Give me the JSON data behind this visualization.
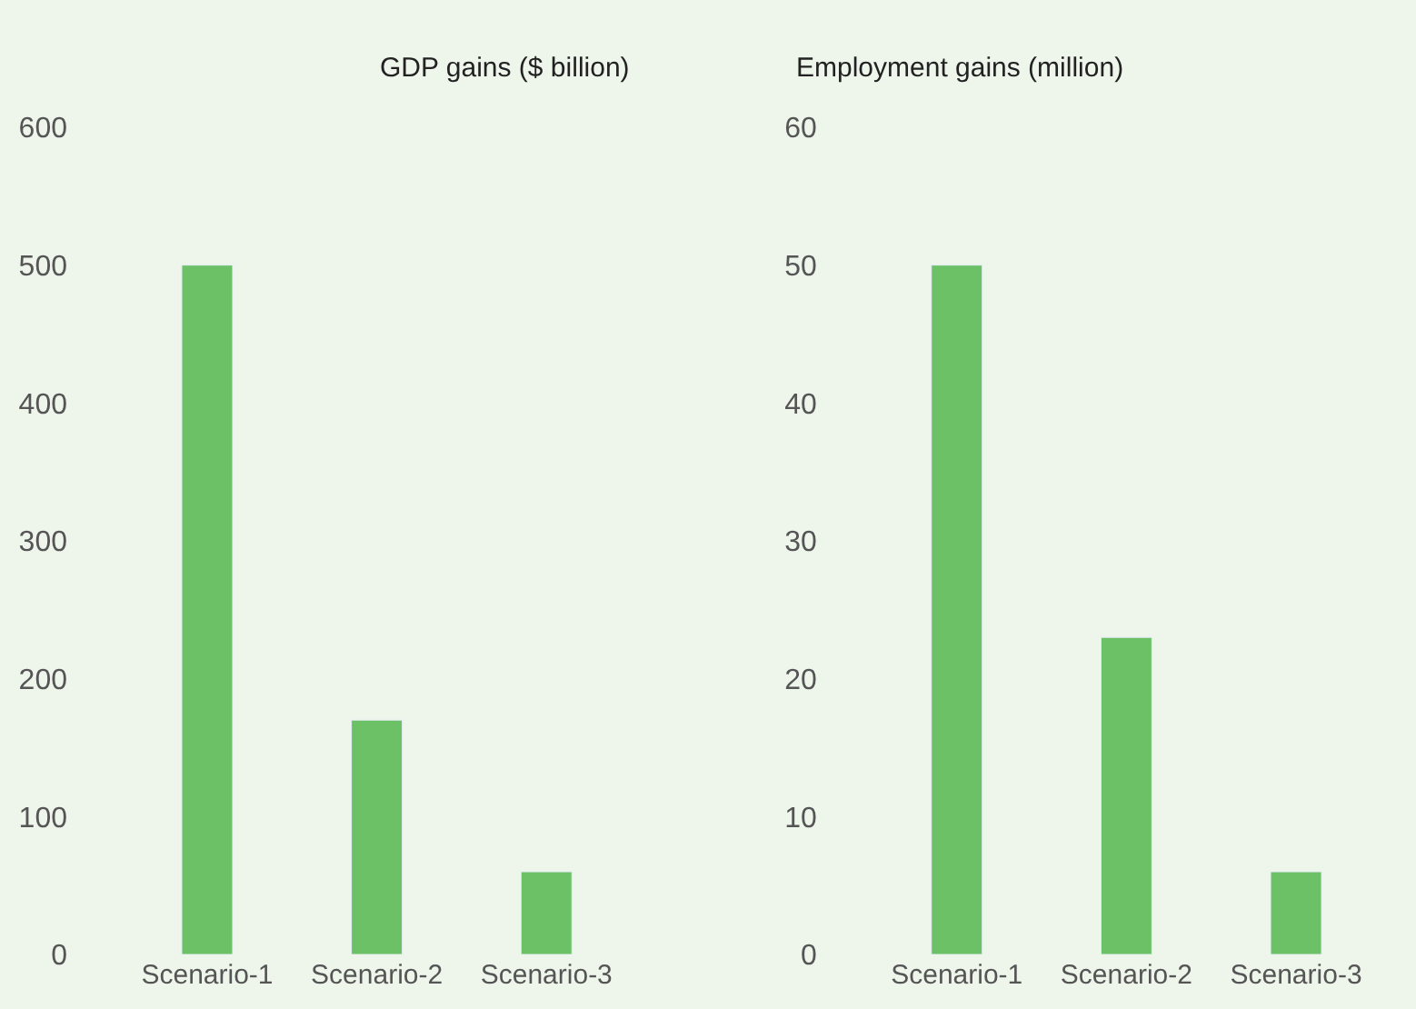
{
  "chart_data": [
    {
      "type": "bar",
      "title": "GDP gains ($ billion)",
      "categories": [
        "Scenario-1",
        "Scenario-2",
        "Scenario-3"
      ],
      "values": [
        500,
        170,
        60
      ],
      "color": "#6cc167",
      "ylim": [
        0,
        600
      ],
      "yticks": [
        0,
        100,
        200,
        300,
        400,
        500,
        600
      ],
      "grid": false
    },
    {
      "type": "bar",
      "title": "Employment gains (million)",
      "categories": [
        "Scenario-1",
        "Scenario-2",
        "Scenario-3"
      ],
      "values": [
        50,
        23,
        6
      ],
      "color": "#6cc167",
      "ylim": [
        0,
        60
      ],
      "yticks": [
        0,
        10,
        20,
        30,
        40,
        50,
        60
      ],
      "grid": false
    }
  ]
}
